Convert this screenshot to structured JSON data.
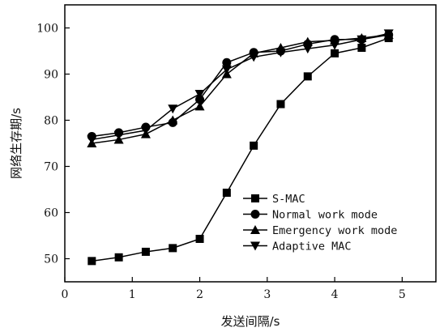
{
  "chart_data": {
    "type": "line",
    "xlabel": "发送间隔/s",
    "ylabel": "网络生存期/s",
    "xlim": [
      0,
      5.5
    ],
    "ylim": [
      45,
      105
    ],
    "xticks": [
      0,
      1,
      2,
      3,
      4,
      5
    ],
    "yticks": [
      50,
      60,
      70,
      80,
      90,
      100
    ],
    "xtick_labels": [
      "0",
      "1",
      "2",
      "3",
      "4",
      "5"
    ],
    "ytick_labels": [
      "50",
      "60",
      "70",
      "80",
      "90",
      "100"
    ],
    "grid": false,
    "legend_position": "lower-right",
    "series": [
      {
        "name": "S-MAC",
        "marker": "square",
        "x": [
          0.4,
          0.8,
          1.2,
          1.6,
          2.0,
          2.4,
          2.8,
          3.2,
          3.6,
          4.0,
          4.4,
          4.8
        ],
        "y": [
          49.5,
          50.3,
          51.5,
          52.3,
          54.3,
          64.3,
          74.5,
          83.5,
          89.5,
          94.5,
          95.7,
          97.8
        ]
      },
      {
        "name": "Normal work mode",
        "marker": "circle",
        "x": [
          0.4,
          0.8,
          1.2,
          1.6,
          2.0,
          2.4,
          2.8,
          3.2,
          3.6,
          4.0,
          4.4,
          4.8
        ],
        "y": [
          76.5,
          77.3,
          78.5,
          79.5,
          84.5,
          92.5,
          94.7,
          95.0,
          96.5,
          97.5,
          97.5,
          98.5
        ]
      },
      {
        "name": "Emergency work mode",
        "marker": "triangle-up",
        "x": [
          0.4,
          0.8,
          1.2,
          1.6,
          2.0,
          2.4,
          2.8,
          3.2,
          3.6,
          4.0,
          4.4,
          4.8
        ],
        "y": [
          75.0,
          75.8,
          77.0,
          80.0,
          83.0,
          90.0,
          94.5,
          95.7,
          97.0,
          97.3,
          97.8,
          98.5
        ]
      },
      {
        "name": "Adaptive MAC",
        "marker": "triangle-down",
        "x": [
          0.4,
          0.8,
          1.2,
          1.6,
          2.0,
          2.4,
          2.8,
          3.2,
          3.6,
          4.0,
          4.4,
          4.8
        ],
        "y": [
          75.8,
          76.8,
          77.8,
          82.5,
          85.7,
          91.0,
          93.7,
          94.7,
          95.5,
          96.3,
          97.5,
          98.8
        ]
      }
    ]
  }
}
